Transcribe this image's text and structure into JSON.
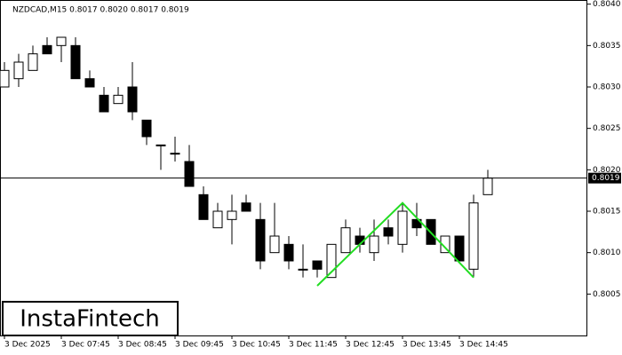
{
  "chart_data": {
    "type": "candlestick",
    "title": "NZDCAD,M15  0.8017 0.8020 0.8017 0.8019",
    "watermark": "InstaFintech",
    "categories": [
      "3 Dec 2025",
      null,
      null,
      null,
      "3 Dec 07:45",
      null,
      null,
      null,
      "3 Dec 08:45",
      null,
      null,
      null,
      "3 Dec 09:45",
      null,
      null,
      null,
      "3 Dec 10:45",
      null,
      null,
      null,
      "3 Dec 11:45",
      null,
      null,
      null,
      "3 Dec 12:45",
      null,
      null,
      null,
      "3 Dec 13:45",
      null,
      null,
      null,
      "3 Dec 14:45",
      null,
      null
    ],
    "open": [
      0.803,
      0.8031,
      0.8032,
      0.8035,
      0.8035,
      0.8035,
      0.8031,
      0.8029,
      0.8028,
      0.803,
      0.8026,
      0.8023,
      0.8022,
      0.8021,
      0.8017,
      0.8013,
      0.8014,
      0.8016,
      0.8014,
      0.801,
      0.8011,
      0.8008,
      0.8009,
      0.8007,
      0.801,
      0.8012,
      0.801,
      0.8013,
      0.8011,
      0.8014,
      0.8014,
      0.801,
      0.8012,
      0.8008,
      0.8017
    ],
    "high": [
      0.8033,
      0.8034,
      0.8035,
      0.8036,
      0.8036,
      0.8036,
      0.8032,
      0.803,
      0.803,
      0.8033,
      0.8026,
      0.8023,
      0.8024,
      0.8023,
      0.8018,
      0.8016,
      0.8017,
      0.8017,
      0.8016,
      0.8016,
      0.8012,
      0.8011,
      0.8009,
      0.8011,
      0.8014,
      0.8013,
      0.8014,
      0.8014,
      0.8016,
      0.8016,
      0.8014,
      0.8012,
      0.8012,
      0.8017,
      0.802
    ],
    "low": [
      0.803,
      0.803,
      0.8032,
      0.8034,
      0.8033,
      0.8031,
      0.803,
      0.8027,
      0.8028,
      0.8026,
      0.8023,
      0.802,
      0.8021,
      0.8018,
      0.8014,
      0.8013,
      0.8011,
      0.8015,
      0.8008,
      0.801,
      0.8008,
      0.8007,
      0.8007,
      0.8007,
      0.801,
      0.801,
      0.8009,
      0.8011,
      0.801,
      0.8012,
      0.8011,
      0.801,
      0.8009,
      0.8007,
      0.8017
    ],
    "close": [
      0.8032,
      0.8033,
      0.8034,
      0.8034,
      0.8036,
      0.8031,
      0.803,
      0.8027,
      0.8029,
      0.8027,
      0.8024,
      0.8023,
      0.8022,
      0.8018,
      0.8014,
      0.8015,
      0.8015,
      0.8015,
      0.8009,
      0.8012,
      0.8009,
      0.8008,
      0.8008,
      0.8011,
      0.8013,
      0.8011,
      0.8012,
      0.8012,
      0.8015,
      0.8013,
      0.8011,
      0.8012,
      0.8009,
      0.8016,
      0.8019
    ],
    "ylim": [
      0.8,
      0.80405
    ],
    "yticks": [
      {
        "value": 0.804,
        "label": "0.8040"
      },
      0.8035,
      {
        "value": 0.803,
        "label": "0.8030"
      },
      0.8025,
      {
        "value": 0.802,
        "label": "0.8020"
      },
      0.8015,
      {
        "value": 0.801,
        "label": "0.8010"
      },
      0.8005
    ],
    "current_price": 0.8019,
    "pattern_line": {
      "color": "#22dd22",
      "points": [
        {
          "x": 22,
          "y": 0.8006
        },
        {
          "x": 28,
          "y": 0.8016
        },
        {
          "x": 33,
          "y": 0.8007
        }
      ]
    }
  }
}
